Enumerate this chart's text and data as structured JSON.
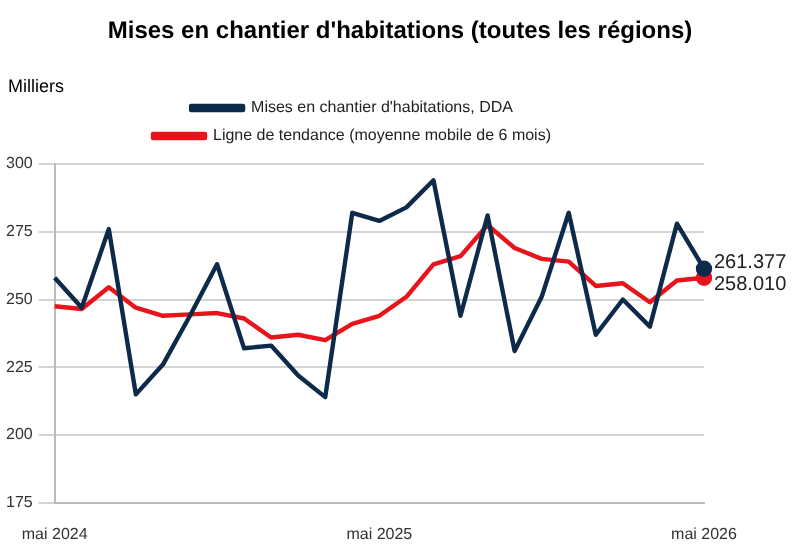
{
  "chart_data": {
    "type": "line",
    "title": "Mises en chantier d'habitations (toutes les régions)",
    "ylabel": "Milliers",
    "categories": [
      "mai 2024",
      null,
      null,
      null,
      null,
      null,
      null,
      null,
      null,
      null,
      null,
      null,
      "mai 2025",
      null,
      null,
      null,
      null,
      null,
      null,
      null,
      null,
      null,
      null,
      null,
      "mai 2026"
    ],
    "series": [
      {
        "name": "Mises en chantier d'habitations, DDA",
        "color": "#0e2a4a",
        "values": [
          258,
          247,
          276,
          215,
          226,
          244,
          263,
          232,
          233,
          222,
          214,
          282,
          279,
          284,
          294,
          244,
          281,
          231,
          251,
          282,
          237,
          250,
          240,
          278,
          261.377
        ],
        "value_labels": [
          null,
          null,
          null,
          null,
          null,
          null,
          null,
          null,
          null,
          null,
          null,
          null,
          null,
          null,
          null,
          null,
          null,
          null,
          null,
          null,
          null,
          null,
          null,
          null,
          "261.377"
        ]
      },
      {
        "name": "Ligne de tendance (moyenne mobile de 6 mois)",
        "color": "#e8141c",
        "values": [
          247.5,
          246.5,
          254.5,
          247,
          244,
          244.5,
          245,
          243,
          236,
          237,
          235,
          241,
          244,
          251,
          263,
          266,
          277.5,
          269,
          265,
          264,
          255,
          256,
          249,
          257,
          258.01
        ],
        "value_labels": [
          null,
          null,
          null,
          null,
          null,
          null,
          null,
          null,
          null,
          null,
          null,
          null,
          null,
          null,
          null,
          null,
          null,
          null,
          null,
          null,
          null,
          null,
          null,
          null,
          "258.010"
        ]
      }
    ],
    "ylim": [
      175,
      300
    ],
    "yticks": [
      175,
      200,
      225,
      250,
      275,
      300
    ],
    "grid": "y",
    "legend": "top",
    "marker": "none",
    "line_style": "solid"
  }
}
